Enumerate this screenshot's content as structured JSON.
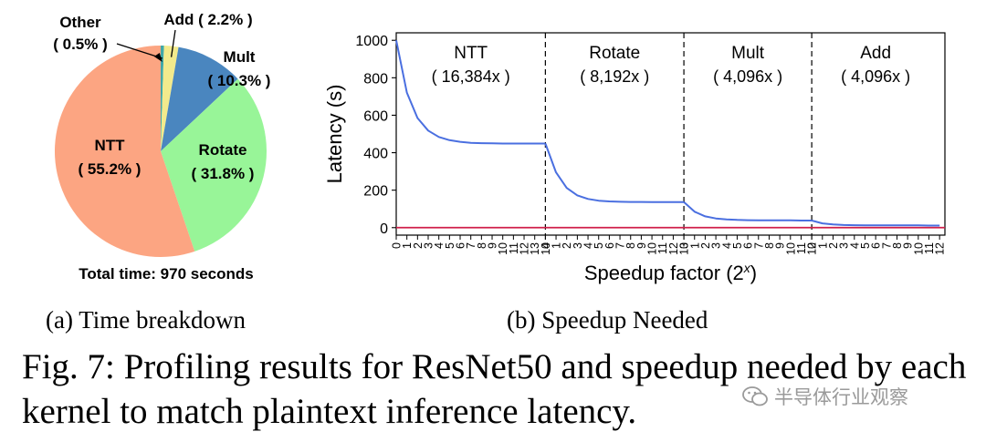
{
  "chart_data": [
    {
      "type": "pie",
      "slices": [
        {
          "name": "Other",
          "label": "( 0.5% )",
          "value": 0.5,
          "color": "#40a8a8"
        },
        {
          "name": "Add",
          "label": "( 2.2% )",
          "value": 2.2,
          "color": "#f2ea8c"
        },
        {
          "name": "Mult",
          "label": "( 10.3% )",
          "value": 10.3,
          "color": "#4a86bf"
        },
        {
          "name": "Rotate",
          "label": "( 31.8% )",
          "value": 31.8,
          "color": "#98f598"
        },
        {
          "name": "NTT",
          "label": "( 55.2% )",
          "value": 55.2,
          "color": "#fca582"
        }
      ],
      "footnote": "Total time: 970 seconds"
    },
    {
      "type": "line",
      "xlabel_base": "Speedup factor (2",
      "xlabel_sup": "x",
      "xlabel_close": ")",
      "ylabel": "Latency (s)",
      "ylim": [
        -40,
        1040
      ],
      "yticks": [
        0,
        200,
        400,
        600,
        800,
        1000
      ],
      "line_color": "#4a6fe0",
      "baseline_color": "#d0204a",
      "baseline_value": 0,
      "segments": [
        {
          "name": "NTT",
          "factor": "( 16,384x )",
          "x": [
            0,
            1,
            2,
            3,
            4,
            5,
            6,
            7,
            8,
            9,
            10,
            11,
            12,
            13,
            14
          ],
          "y": [
            1000,
            720,
            585,
            518,
            484,
            467,
            458,
            453,
            451,
            450,
            449,
            449,
            449,
            449,
            449
          ]
        },
        {
          "name": "Rotate",
          "factor": "( 8,192x )",
          "x": [
            0,
            1,
            2,
            3,
            4,
            5,
            6,
            7,
            8,
            9,
            10,
            11,
            12,
            13
          ],
          "y": [
            449,
            295,
            212,
            172,
            153,
            144,
            140,
            138,
            137,
            137,
            136,
            136,
            136,
            136
          ]
        },
        {
          "name": "Mult",
          "factor": "( 4,096x )",
          "x": [
            0,
            1,
            2,
            3,
            4,
            5,
            6,
            7,
            8,
            9,
            10,
            11,
            12
          ],
          "y": [
            136,
            85,
            60,
            49,
            44,
            41,
            40,
            39,
            39,
            39,
            39,
            38,
            38
          ]
        },
        {
          "name": "Add",
          "factor": "( 4,096x )",
          "x": [
            0,
            1,
            2,
            3,
            4,
            5,
            6,
            7,
            8,
            9,
            10,
            11,
            12
          ],
          "y": [
            38,
            23,
            17,
            14,
            13,
            12,
            12,
            12,
            12,
            12,
            12,
            11,
            11
          ]
        }
      ]
    }
  ],
  "captions": {
    "a": "(a) Time breakdown",
    "b": "(b) Speedup Needed",
    "figure": "Fig. 7: Profiling results for ResNet50 and speedup needed by each kernel to match plaintext inference latency."
  },
  "watermark": "半导体行业观察"
}
